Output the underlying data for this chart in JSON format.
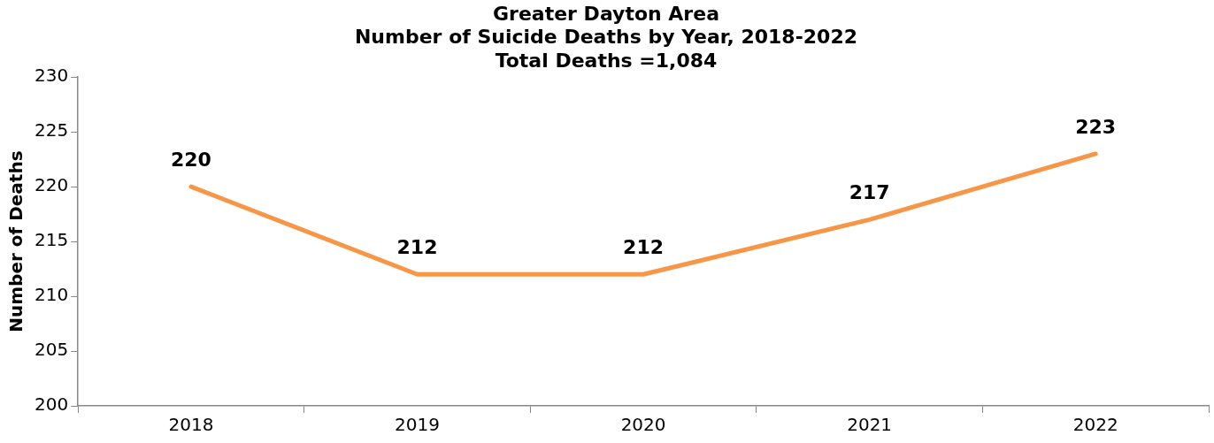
{
  "chart_data": {
    "type": "line",
    "title": "Greater Dayton Area\nNumber of Suicide Deaths by Year, 2018-2022",
    "subtitle": "Total Deaths =1,084",
    "ylabel": "Number of Deaths",
    "categories": [
      "2018",
      "2019",
      "2020",
      "2021",
      "2022"
    ],
    "series": [
      {
        "color": "#f79646",
        "values": [
          220,
          212,
          212,
          217,
          223
        ]
      }
    ],
    "ylim": [
      200,
      230
    ],
    "yticks": [
      200,
      205,
      210,
      215,
      220,
      225,
      230
    ],
    "grid": false,
    "legend": false,
    "marker": "none",
    "line_style": "solid",
    "data_labels": true
  }
}
